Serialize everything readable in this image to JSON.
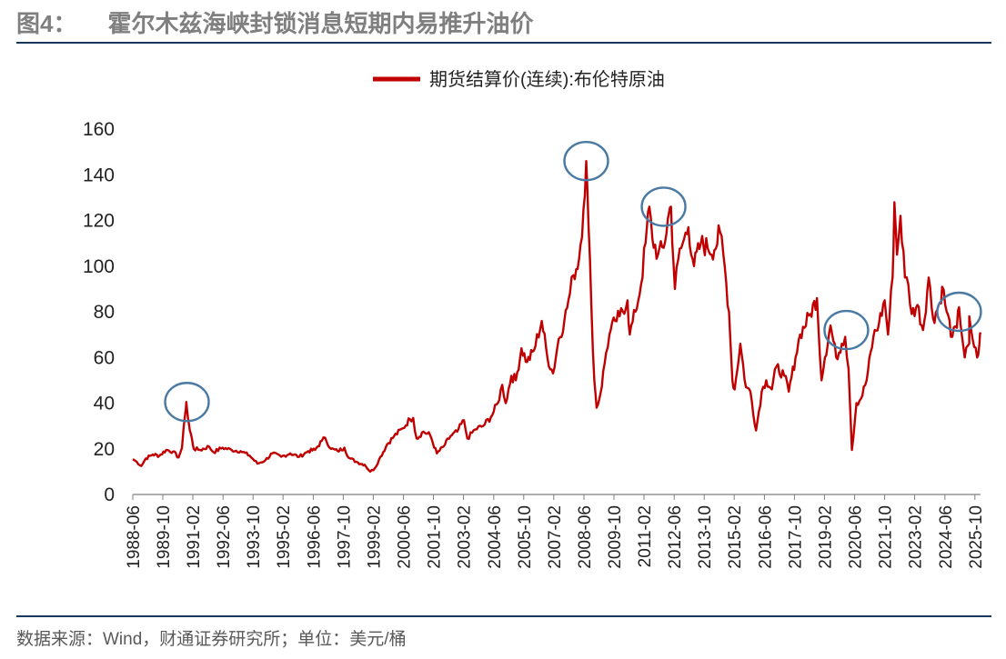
{
  "figure": {
    "number": "图4：",
    "title": "霍尔木兹海峡封锁消息短期内易推升油价",
    "source": "数据来源：Wind，财通证券研究所；单位：美元/桶"
  },
  "colors": {
    "series": "#c00000",
    "highlight": "#4a7aa3",
    "rule": "#17375e"
  },
  "chart_data": {
    "type": "line",
    "title": "",
    "xlabel": "",
    "ylabel": "",
    "unit": "美元/桶",
    "legend_position": "top-center",
    "ylim": [
      0,
      160
    ],
    "yticks": [
      "0",
      "20",
      "40",
      "60",
      "80",
      "100",
      "120",
      "140",
      "160"
    ],
    "xlim": [
      1988.42,
      2026.0
    ],
    "xticks": [
      {
        "label": "1988-06",
        "t": 1988.42
      },
      {
        "label": "1989-10",
        "t": 1989.75
      },
      {
        "label": "1991-02",
        "t": 1991.08
      },
      {
        "label": "1992-06",
        "t": 1992.42
      },
      {
        "label": "1993-10",
        "t": 1993.75
      },
      {
        "label": "1995-02",
        "t": 1995.08
      },
      {
        "label": "1996-06",
        "t": 1996.42
      },
      {
        "label": "1997-10",
        "t": 1997.75
      },
      {
        "label": "1999-02",
        "t": 1999.08
      },
      {
        "label": "2000-06",
        "t": 2000.42
      },
      {
        "label": "2001-10",
        "t": 2001.75
      },
      {
        "label": "2003-02",
        "t": 2003.08
      },
      {
        "label": "2004-06",
        "t": 2004.42
      },
      {
        "label": "2005-10",
        "t": 2005.75
      },
      {
        "label": "2007-02",
        "t": 2007.08
      },
      {
        "label": "2008-06",
        "t": 2008.42
      },
      {
        "label": "2009-10",
        "t": 2009.75
      },
      {
        "label": "2011-02",
        "t": 2011.08
      },
      {
        "label": "2012-06",
        "t": 2012.42
      },
      {
        "label": "2013-10",
        "t": 2013.75
      },
      {
        "label": "2015-02",
        "t": 2015.08
      },
      {
        "label": "2016-06",
        "t": 2016.42
      },
      {
        "label": "2017-10",
        "t": 2017.75
      },
      {
        "label": "2019-02",
        "t": 2019.08
      },
      {
        "label": "2020-06",
        "t": 2020.42
      },
      {
        "label": "2021-10",
        "t": 2021.75
      },
      {
        "label": "2023-02",
        "t": 2023.08
      },
      {
        "label": "2024-06",
        "t": 2024.42
      },
      {
        "label": "2025-10",
        "t": 2025.75
      }
    ],
    "series": [
      {
        "name": "期货结算价(连续):布伦特原油",
        "points": [
          [
            1988.42,
            15.5
          ],
          [
            1988.6,
            14.2
          ],
          [
            1988.8,
            12.5
          ],
          [
            1989.0,
            15.8
          ],
          [
            1989.3,
            17.5
          ],
          [
            1989.6,
            17.0
          ],
          [
            1989.9,
            19.5
          ],
          [
            1990.2,
            18.8
          ],
          [
            1990.45,
            16.2
          ],
          [
            1990.6,
            20.5
          ],
          [
            1990.75,
            36.0
          ],
          [
            1990.79,
            40.5
          ],
          [
            1990.87,
            33.0
          ],
          [
            1990.95,
            28.0
          ],
          [
            1991.05,
            24.0
          ],
          [
            1991.12,
            20.0
          ],
          [
            1991.4,
            19.5
          ],
          [
            1991.8,
            21.0
          ],
          [
            1992.0,
            18.5
          ],
          [
            1992.4,
            20.5
          ],
          [
            1992.8,
            19.5
          ],
          [
            1993.2,
            19.0
          ],
          [
            1993.6,
            17.0
          ],
          [
            1993.95,
            13.5
          ],
          [
            1994.3,
            15.0
          ],
          [
            1994.6,
            18.0
          ],
          [
            1995.0,
            16.5
          ],
          [
            1995.4,
            18.0
          ],
          [
            1995.8,
            16.5
          ],
          [
            1996.2,
            19.0
          ],
          [
            1996.5,
            19.5
          ],
          [
            1996.8,
            23.5
          ],
          [
            1996.95,
            24.8
          ],
          [
            1997.2,
            20.0
          ],
          [
            1997.5,
            19.0
          ],
          [
            1997.8,
            20.5
          ],
          [
            1998.0,
            16.0
          ],
          [
            1998.4,
            14.0
          ],
          [
            1998.7,
            13.0
          ],
          [
            1998.95,
            10.0
          ],
          [
            1999.15,
            11.5
          ],
          [
            1999.4,
            16.5
          ],
          [
            1999.7,
            22.0
          ],
          [
            2000.0,
            25.5
          ],
          [
            2000.4,
            29.0
          ],
          [
            2000.7,
            33.0
          ],
          [
            2000.85,
            33.5
          ],
          [
            2001.0,
            24.5
          ],
          [
            2001.3,
            27.5
          ],
          [
            2001.6,
            26.0
          ],
          [
            2001.9,
            18.0
          ],
          [
            2002.2,
            21.0
          ],
          [
            2002.5,
            25.5
          ],
          [
            2002.8,
            27.5
          ],
          [
            2003.1,
            32.5
          ],
          [
            2003.25,
            24.5
          ],
          [
            2003.6,
            28.5
          ],
          [
            2003.95,
            30.0
          ],
          [
            2004.3,
            34.0
          ],
          [
            2004.6,
            40.0
          ],
          [
            2004.8,
            48.0
          ],
          [
            2004.95,
            40.0
          ],
          [
            2005.2,
            52.0
          ],
          [
            2005.4,
            50.0
          ],
          [
            2005.65,
            64.0
          ],
          [
            2005.9,
            58.0
          ],
          [
            2006.2,
            63.0
          ],
          [
            2006.55,
            76.0
          ],
          [
            2006.8,
            60.0
          ],
          [
            2007.05,
            53.0
          ],
          [
            2007.3,
            68.0
          ],
          [
            2007.55,
            76.0
          ],
          [
            2007.8,
            88.0
          ],
          [
            2007.95,
            96.0
          ],
          [
            2008.2,
            103.0
          ],
          [
            2008.4,
            125.0
          ],
          [
            2008.52,
            146.0
          ],
          [
            2008.62,
            118.0
          ],
          [
            2008.75,
            82.0
          ],
          [
            2008.88,
            50.0
          ],
          [
            2008.98,
            38.0
          ],
          [
            2009.15,
            44.0
          ],
          [
            2009.4,
            62.0
          ],
          [
            2009.55,
            70.0
          ],
          [
            2009.8,
            76.0
          ],
          [
            2010.0,
            78.0
          ],
          [
            2010.35,
            85.0
          ],
          [
            2010.45,
            70.0
          ],
          [
            2010.7,
            80.0
          ],
          [
            2010.95,
            92.0
          ],
          [
            2011.15,
            110.0
          ],
          [
            2011.32,
            126.0
          ],
          [
            2011.45,
            112.0
          ],
          [
            2011.7,
            105.0
          ],
          [
            2011.95,
            108.0
          ],
          [
            2012.2,
            124.0
          ],
          [
            2012.28,
            126.0
          ],
          [
            2012.45,
            90.0
          ],
          [
            2012.6,
            103.0
          ],
          [
            2012.8,
            110.0
          ],
          [
            2013.05,
            117.0
          ],
          [
            2013.3,
            100.0
          ],
          [
            2013.6,
            110.0
          ],
          [
            2013.9,
            108.0
          ],
          [
            2014.2,
            107.0
          ],
          [
            2014.45,
            115.0
          ],
          [
            2014.6,
            105.0
          ],
          [
            2014.85,
            80.0
          ],
          [
            2015.0,
            50.0
          ],
          [
            2015.1,
            46.0
          ],
          [
            2015.35,
            66.0
          ],
          [
            2015.6,
            47.0
          ],
          [
            2015.8,
            45.0
          ],
          [
            2016.05,
            28.0
          ],
          [
            2016.3,
            45.0
          ],
          [
            2016.5,
            50.0
          ],
          [
            2016.75,
            46.0
          ],
          [
            2016.95,
            56.0
          ],
          [
            2017.3,
            52.0
          ],
          [
            2017.5,
            45.0
          ],
          [
            2017.8,
            60.0
          ],
          [
            2018.0,
            70.0
          ],
          [
            2018.45,
            79.0
          ],
          [
            2018.75,
            86.0
          ],
          [
            2018.95,
            50.0
          ],
          [
            2019.1,
            60.0
          ],
          [
            2019.35,
            74.0
          ],
          [
            2019.6,
            60.0
          ],
          [
            2019.85,
            66.0
          ],
          [
            2020.0,
            69.0
          ],
          [
            2020.15,
            55.0
          ],
          [
            2020.3,
            19.5
          ],
          [
            2020.5,
            40.0
          ],
          [
            2020.7,
            42.0
          ],
          [
            2020.95,
            50.0
          ],
          [
            2021.25,
            69.0
          ],
          [
            2021.5,
            75.0
          ],
          [
            2021.75,
            85.0
          ],
          [
            2021.9,
            70.0
          ],
          [
            2022.1,
            95.0
          ],
          [
            2022.18,
            128.0
          ],
          [
            2022.3,
            105.0
          ],
          [
            2022.45,
            122.0
          ],
          [
            2022.65,
            95.0
          ],
          [
            2022.8,
            92.0
          ],
          [
            2022.95,
            79.0
          ],
          [
            2023.2,
            83.0
          ],
          [
            2023.45,
            72.0
          ],
          [
            2023.7,
            95.0
          ],
          [
            2023.9,
            77.0
          ],
          [
            2024.2,
            84.0
          ],
          [
            2024.3,
            91.0
          ],
          [
            2024.5,
            80.0
          ],
          [
            2024.75,
            69.0
          ],
          [
            2024.95,
            73.0
          ],
          [
            2025.05,
            82.0
          ],
          [
            2025.3,
            60.0
          ],
          [
            2025.5,
            66.0
          ],
          [
            2025.5,
            78.0
          ],
          [
            2025.65,
            68.0
          ],
          [
            2025.85,
            60.0
          ],
          [
            2025.95,
            66.0
          ],
          [
            2026.0,
            71.0
          ]
        ]
      }
    ],
    "highlights": [
      {
        "t": 1990.82,
        "value": 40.5
      },
      {
        "t": 2008.52,
        "value": 146.0
      },
      {
        "t": 2011.95,
        "value": 126.0
      },
      {
        "t": 2020.05,
        "value": 72.0
      },
      {
        "t": 2025.05,
        "value": 80.0
      }
    ]
  }
}
